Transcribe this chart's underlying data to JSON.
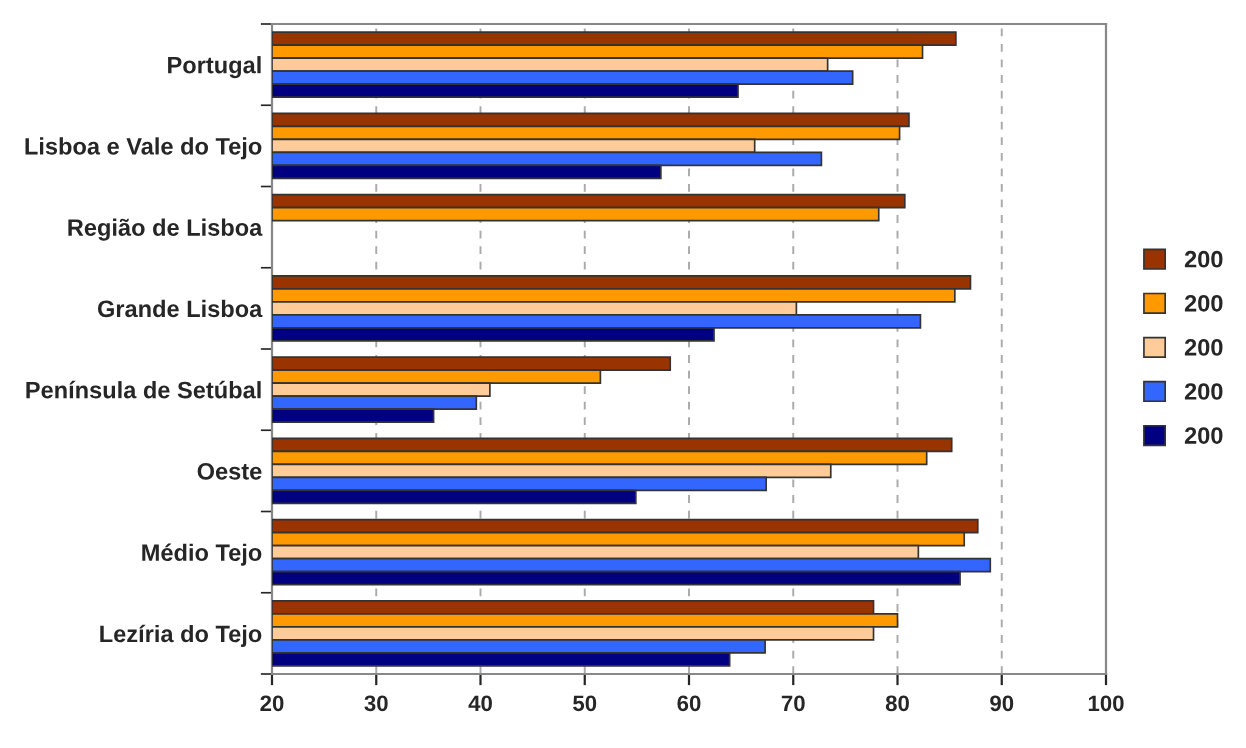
{
  "chart_data": {
    "type": "bar",
    "orientation": "horizontal",
    "categories": [
      "Portugal",
      "Lisboa e Vale do Tejo",
      "Região de Lisboa",
      "Grande Lisboa",
      "Península de Setúbal",
      "Oeste",
      "Médio Tejo",
      "Lezíria do Tejo"
    ],
    "series": [
      {
        "name": "200",
        "color": "#993300",
        "values": [
          85.6,
          81.1,
          80.7,
          87.0,
          58.2,
          85.2,
          87.7,
          77.7
        ]
      },
      {
        "name": "200",
        "color": "#ff9900",
        "values": [
          82.4,
          80.2,
          78.2,
          85.5,
          51.5,
          82.8,
          86.4,
          80.0
        ]
      },
      {
        "name": "200",
        "color": "#ffcc99",
        "values": [
          73.3,
          66.3,
          null,
          70.3,
          40.9,
          73.6,
          82.0,
          77.7
        ]
      },
      {
        "name": "200",
        "color": "#3366ff",
        "values": [
          75.7,
          72.7,
          null,
          82.2,
          39.6,
          67.4,
          88.9,
          67.3
        ]
      },
      {
        "name": "200",
        "color": "#000080",
        "values": [
          64.7,
          57.3,
          null,
          62.4,
          35.5,
          54.9,
          86.0,
          63.9
        ]
      }
    ],
    "xlim": [
      20,
      100
    ],
    "xticks": [
      20,
      30,
      40,
      50,
      60,
      70,
      80,
      90,
      100
    ],
    "grid": "x",
    "legend": "right"
  }
}
